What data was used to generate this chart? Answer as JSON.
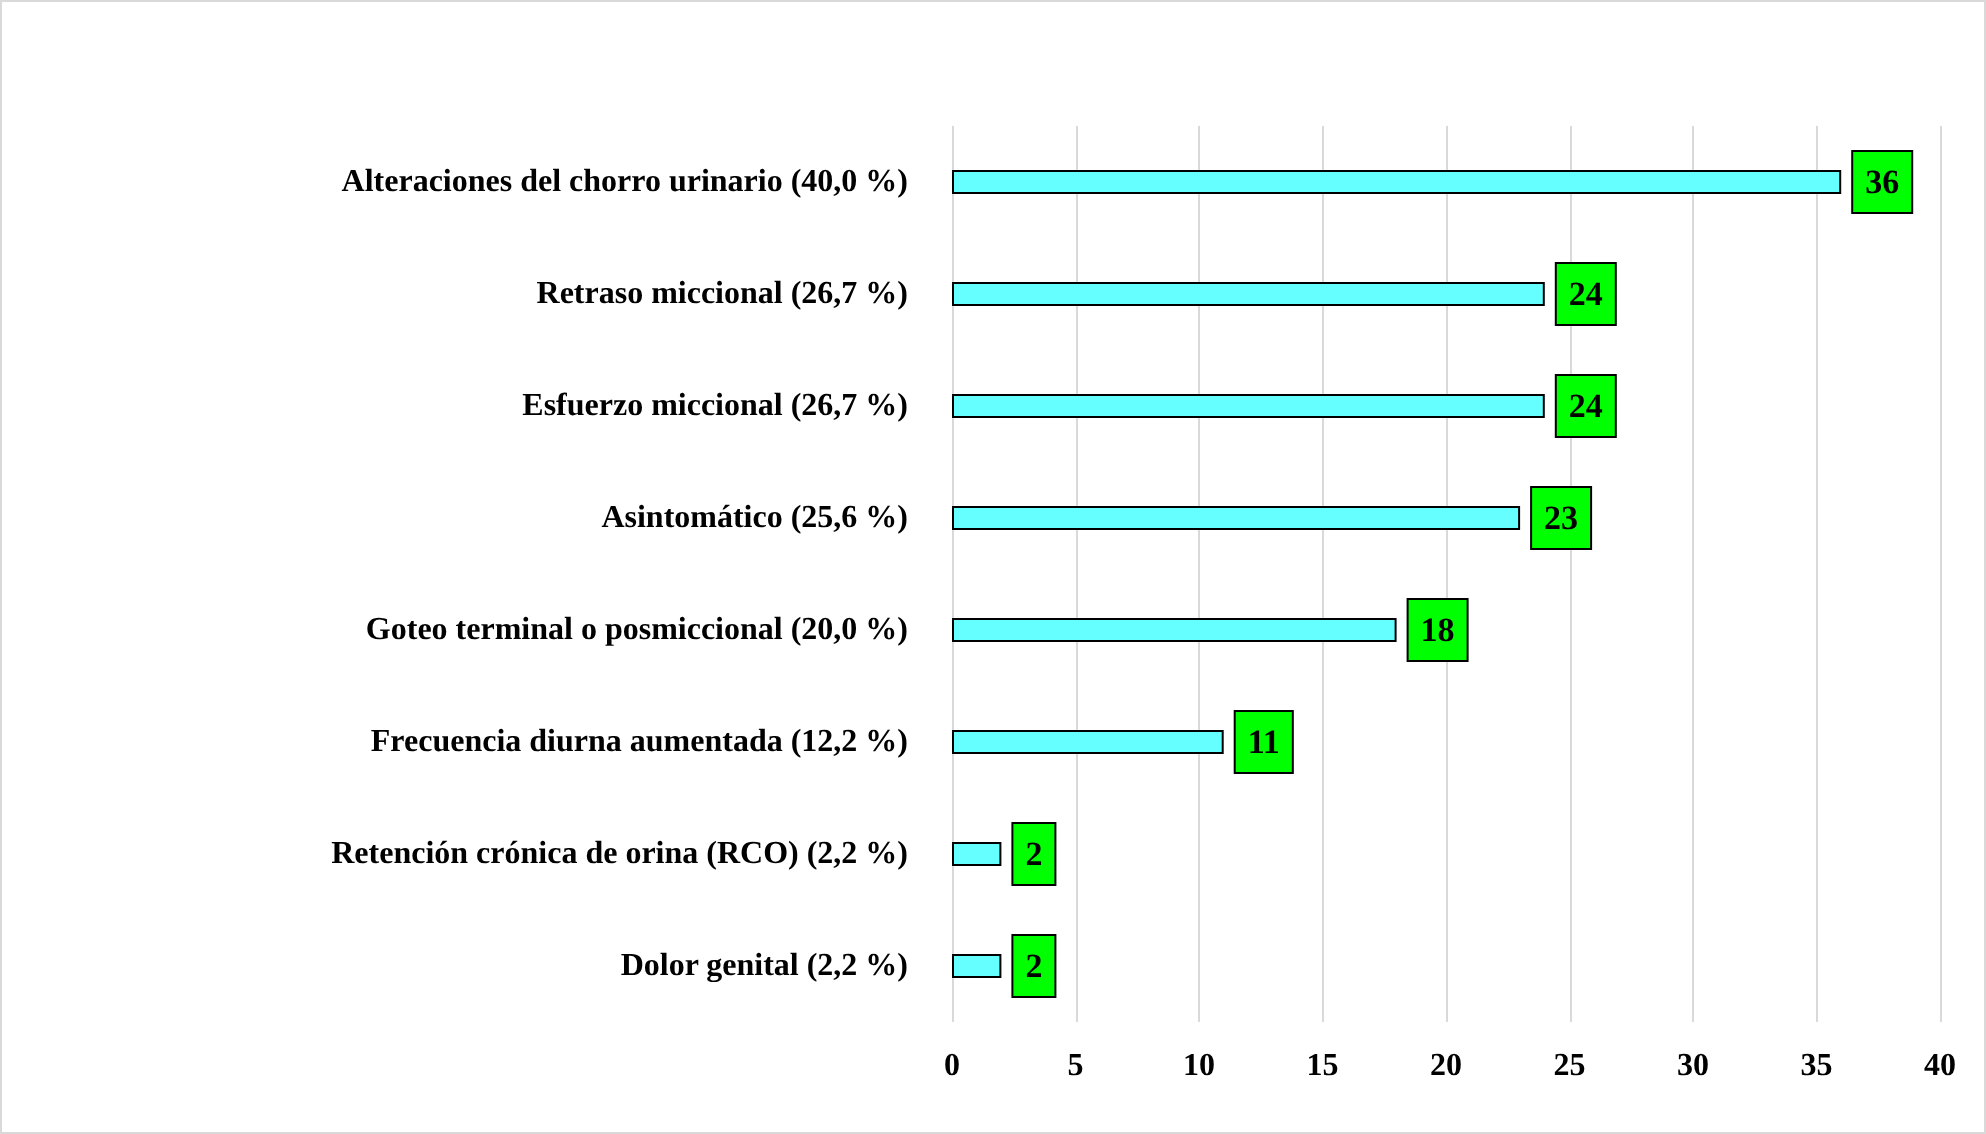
{
  "chart_data": {
    "type": "bar",
    "orientation": "horizontal",
    "categories": [
      "Alteraciones del chorro urinario (40,0 %)",
      "Retraso miccional (26,7 %)",
      "Esfuerzo miccional (26,7 %)",
      "Asintomático (25,6 %)",
      "Goteo terminal o posmiccional (20,0 %)",
      "Frecuencia diurna aumentada (12,2 %)",
      "Retención crónica de orina (RCO) (2,2 %)",
      "Dolor genital (2,2 %)"
    ],
    "values": [
      36,
      24,
      24,
      23,
      18,
      11,
      2,
      2
    ],
    "color": "#66ffff",
    "xlim": [
      0,
      40
    ],
    "xticks": [
      0,
      5,
      10,
      15,
      20,
      25,
      30,
      35,
      40
    ],
    "grid": "x",
    "data_labels": true
  }
}
